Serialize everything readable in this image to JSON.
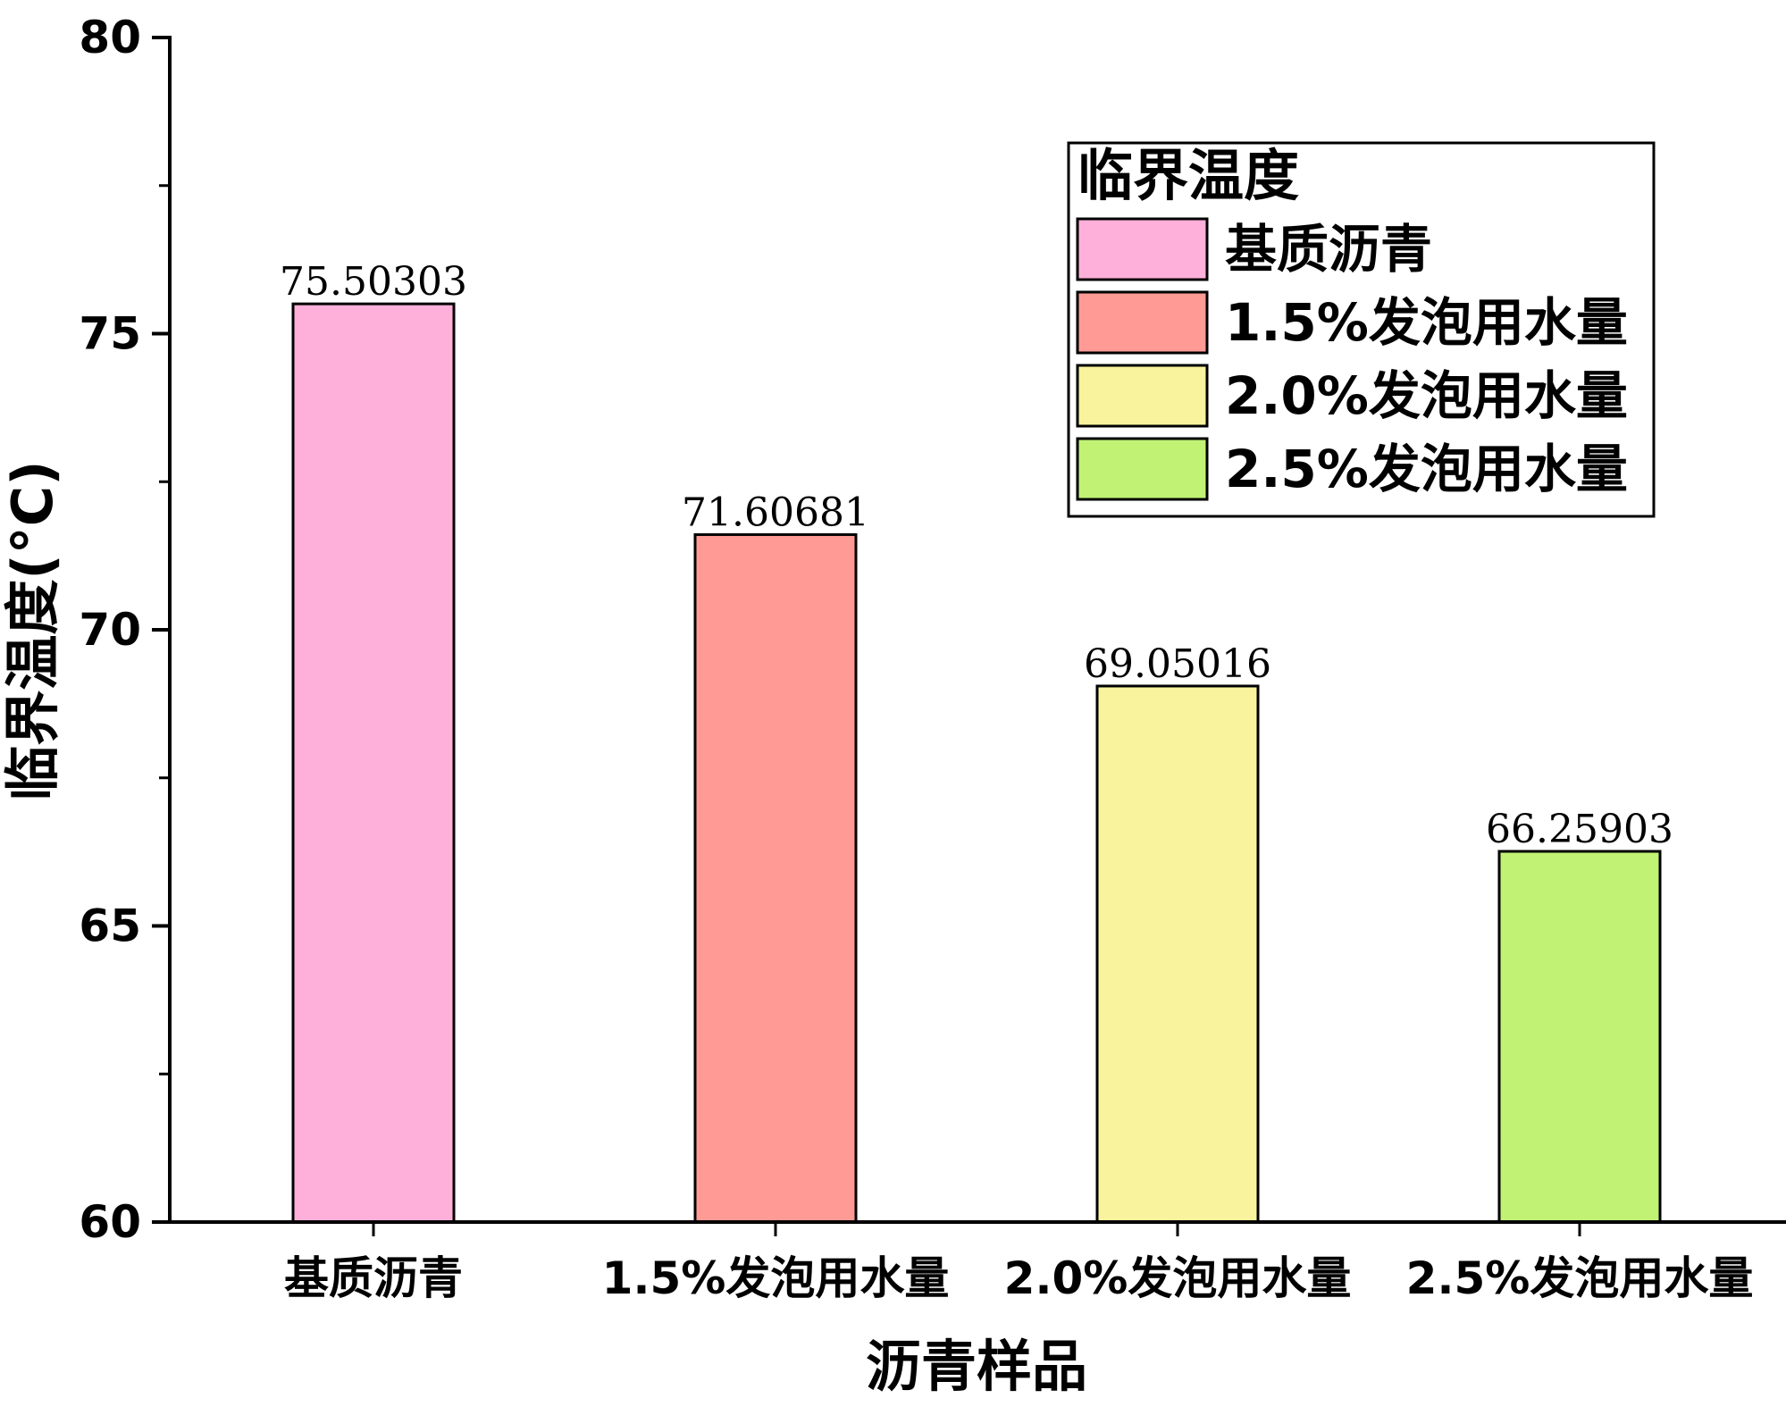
{
  "chart_data": {
    "type": "bar",
    "categories": [
      "基质沥青",
      "1.5%发泡用水量",
      "2.0%发泡用水量",
      "2.5%发泡用水量"
    ],
    "values": [
      75.50303,
      71.60681,
      69.05016,
      66.25903
    ],
    "data_labels": [
      "75.50303",
      "71.60681",
      "69.05016",
      "66.25903"
    ],
    "colors": [
      "#ffb0da",
      "#ff9a94",
      "#f8f39c",
      "#c1f274"
    ],
    "xlabel": "沥青样品",
    "ylabel": "临界温度(°C)",
    "ylim": [
      60,
      80
    ],
    "yticks": [
      60,
      65,
      70,
      75,
      80
    ],
    "yticks_minor": [
      62.5,
      67.5,
      72.5,
      77.5
    ],
    "grid": false,
    "legend": {
      "title": "临界温度",
      "placement": "top-right",
      "entries": [
        "基质沥青",
        "1.5%发泡用水量",
        "2.0%发泡用水量",
        "2.5%发泡用水量"
      ]
    }
  }
}
